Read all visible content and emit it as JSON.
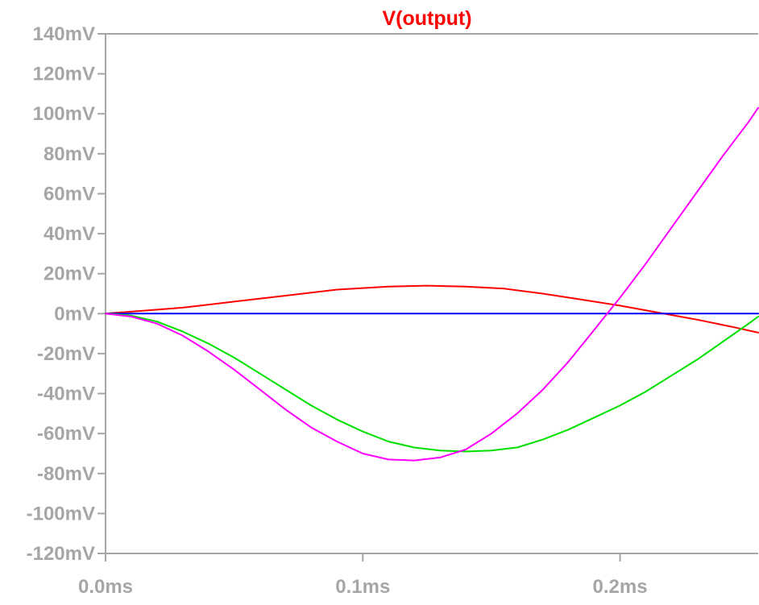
{
  "chart_data": {
    "type": "line",
    "title": "V(output)",
    "title_color": "#ff0000",
    "axis_color": "#a6a6a6",
    "background": "#ffffff",
    "grid": false,
    "legend": "none",
    "xlim": [
      0,
      0.2537
    ],
    "ylim": [
      -120,
      140
    ],
    "x_ticks": [
      {
        "value": 0.0,
        "label": "0.0ms"
      },
      {
        "value": 0.1,
        "label": "0.1ms"
      },
      {
        "value": 0.2,
        "label": "0.2ms"
      }
    ],
    "y_ticks": [
      {
        "value": 140,
        "label": "140mV"
      },
      {
        "value": 120,
        "label": "120mV"
      },
      {
        "value": 100,
        "label": "100mV"
      },
      {
        "value": 80,
        "label": "80mV"
      },
      {
        "value": 60,
        "label": "60mV"
      },
      {
        "value": 40,
        "label": "40mV"
      },
      {
        "value": 20,
        "label": "20mV"
      },
      {
        "value": 0,
        "label": "0mV"
      },
      {
        "value": -20,
        "label": "-20mV"
      },
      {
        "value": -40,
        "label": "-40mV"
      },
      {
        "value": -60,
        "label": "-60mV"
      },
      {
        "value": -80,
        "label": "-80mV"
      },
      {
        "value": -100,
        "label": "-100mV"
      },
      {
        "value": -120,
        "label": "-120mV"
      }
    ],
    "series": [
      {
        "color": "#ff0000",
        "x": [
          0,
          0.015,
          0.03,
          0.05,
          0.07,
          0.09,
          0.11,
          0.125,
          0.14,
          0.155,
          0.17,
          0.185,
          0.2,
          0.215,
          0.23,
          0.245,
          0.2537
        ],
        "y": [
          0,
          1.5,
          3,
          6,
          9,
          12,
          13.5,
          14,
          13.5,
          12.5,
          10,
          7,
          4,
          0.5,
          -3,
          -7,
          -9.5
        ]
      },
      {
        "color": "#0000ff",
        "x": [
          0,
          0.2537
        ],
        "y": [
          0,
          0
        ]
      },
      {
        "color": "#00e000",
        "x": [
          0,
          0.01,
          0.02,
          0.03,
          0.04,
          0.05,
          0.06,
          0.07,
          0.08,
          0.09,
          0.1,
          0.11,
          0.12,
          0.13,
          0.14,
          0.15,
          0.16,
          0.17,
          0.18,
          0.19,
          0.2,
          0.21,
          0.22,
          0.23,
          0.24,
          0.25,
          0.2537
        ],
        "y": [
          0,
          -1,
          -4,
          -9,
          -15,
          -22,
          -30,
          -38,
          -46,
          -53,
          -59,
          -64,
          -67,
          -68.5,
          -69,
          -68.5,
          -67,
          -63,
          -58,
          -52,
          -46,
          -39,
          -31,
          -23,
          -14,
          -5,
          -1.5
        ]
      },
      {
        "color": "#ff00ff",
        "x": [
          0,
          0.01,
          0.02,
          0.03,
          0.04,
          0.05,
          0.06,
          0.07,
          0.08,
          0.09,
          0.1,
          0.11,
          0.12,
          0.13,
          0.14,
          0.15,
          0.16,
          0.17,
          0.18,
          0.19,
          0.2,
          0.21,
          0.22,
          0.23,
          0.24,
          0.25,
          0.2537
        ],
        "y": [
          0,
          -1.5,
          -5,
          -11,
          -19,
          -28,
          -38,
          -48,
          -57,
          -64,
          -70,
          -73,
          -73.5,
          -72,
          -68,
          -60,
          -50,
          -38,
          -24,
          -8,
          8,
          25,
          43,
          61,
          79,
          96,
          103
        ]
      }
    ]
  }
}
